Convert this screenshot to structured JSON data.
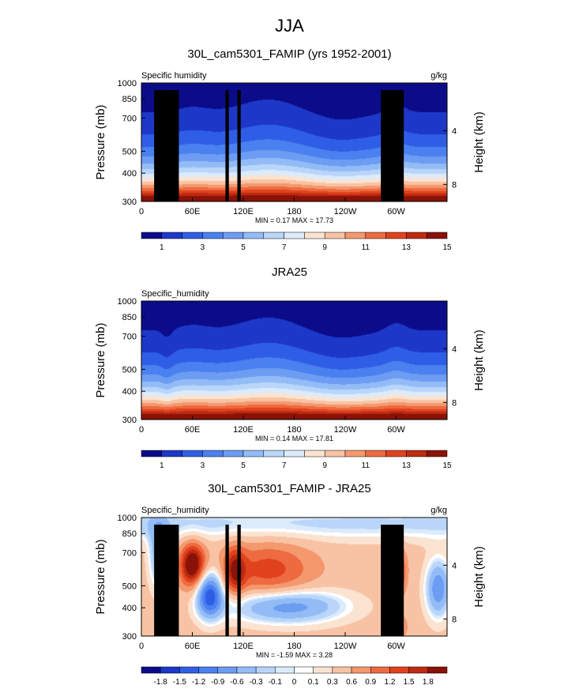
{
  "title": "JJA",
  "colors": {
    "abs_scale": [
      "#0c0c8a",
      "#1d38c8",
      "#2f5ee6",
      "#4a80ef",
      "#6d9cf3",
      "#93bcf7",
      "#b9d6fa",
      "#dcebfc",
      "#fbe3d2",
      "#f8c3a4",
      "#f4986e",
      "#ee6a40",
      "#e1421e",
      "#bd2b10",
      "#8a1208"
    ],
    "diff_scale": [
      "#0c0c8a",
      "#1d38c8",
      "#2f5ee6",
      "#4a80ef",
      "#6d9cf3",
      "#93bcf7",
      "#b9d6fa",
      "#dcebfc",
      "#ffffff",
      "#fbe3d2",
      "#f8c3a4",
      "#f4986e",
      "#ee6a40",
      "#e1421e",
      "#bd2b10",
      "#8a1208"
    ],
    "terrain": "#000000"
  },
  "chart_data": [
    {
      "type": "heatmap",
      "title": "30L_cam5301_FAMIP (yrs 1952-2001)",
      "left_string": "Specific humidity",
      "right_string": "g/kg",
      "ylabel": "Pressure (mb)",
      "y2label": "Height (km)",
      "x_ticks": [
        "0",
        "60E",
        "120E",
        "180",
        "120W",
        "60W"
      ],
      "y_ticks": [
        "300",
        "400",
        "500",
        "700",
        "850",
        "1000"
      ],
      "y2_ticks": [
        "8",
        "4"
      ],
      "x_range": [
        0,
        360
      ],
      "y_range": [
        1000,
        300
      ],
      "min_max": "MIN =  0.17  MAX =  17.73",
      "colorbar_labels": [
        "1",
        "3",
        "5",
        "7",
        "9",
        "11",
        "13",
        "15"
      ],
      "contour_levels": [
        0,
        1,
        2,
        3,
        4,
        5,
        6,
        7,
        8,
        9,
        10,
        11,
        12,
        13,
        14,
        15
      ],
      "field": "moist",
      "terrain": true
    },
    {
      "type": "heatmap",
      "title": "JRA25",
      "left_string": "Specific_humidity",
      "right_string": "",
      "ylabel": "Pressure (mb)",
      "y2label": "Height (km)",
      "x_ticks": [
        "0",
        "60E",
        "120E",
        "180",
        "120W",
        "60W"
      ],
      "y_ticks": [
        "300",
        "400",
        "500",
        "700",
        "850",
        "1000"
      ],
      "y2_ticks": [
        "8",
        "4"
      ],
      "x_range": [
        0,
        360
      ],
      "y_range": [
        1000,
        300
      ],
      "min_max": "MIN =  0.14  MAX =  17.81",
      "colorbar_labels": [
        "1",
        "3",
        "5",
        "7",
        "9",
        "11",
        "13",
        "15"
      ],
      "contour_levels": [
        0,
        1,
        2,
        3,
        4,
        5,
        6,
        7,
        8,
        9,
        10,
        11,
        12,
        13,
        14,
        15
      ],
      "field": "moist",
      "terrain": false
    },
    {
      "type": "heatmap",
      "title": "30L_cam5301_FAMIP - JRA25",
      "left_string": "Specific_humidity",
      "right_string": "g/kg",
      "ylabel": "Pressure (mb)",
      "y2label": "Height (km)",
      "x_ticks": [
        "0",
        "60E",
        "120E",
        "180",
        "120W",
        "60W"
      ],
      "y_ticks": [
        "300",
        "400",
        "500",
        "700",
        "850",
        "1000"
      ],
      "y2_ticks": [
        "8",
        "4"
      ],
      "x_range": [
        0,
        360
      ],
      "y_range": [
        1000,
        300
      ],
      "min_max": "MIN = -1.59  MAX =  3.28",
      "colorbar_labels": [
        "-1.8",
        "-1.5",
        "-1.2",
        "-0.9",
        "-0.6",
        "-0.3",
        "-0.1",
        "0",
        "0.1",
        "0.3",
        "0.6",
        "0.9",
        "1.2",
        "1.5",
        "1.8"
      ],
      "contour_levels": [
        -1.8,
        -1.5,
        -1.2,
        -0.9,
        -0.6,
        -0.3,
        -0.1,
        0,
        0.1,
        0.3,
        0.6,
        0.9,
        1.2,
        1.5,
        1.8
      ],
      "field": "diff",
      "terrain": true
    }
  ]
}
